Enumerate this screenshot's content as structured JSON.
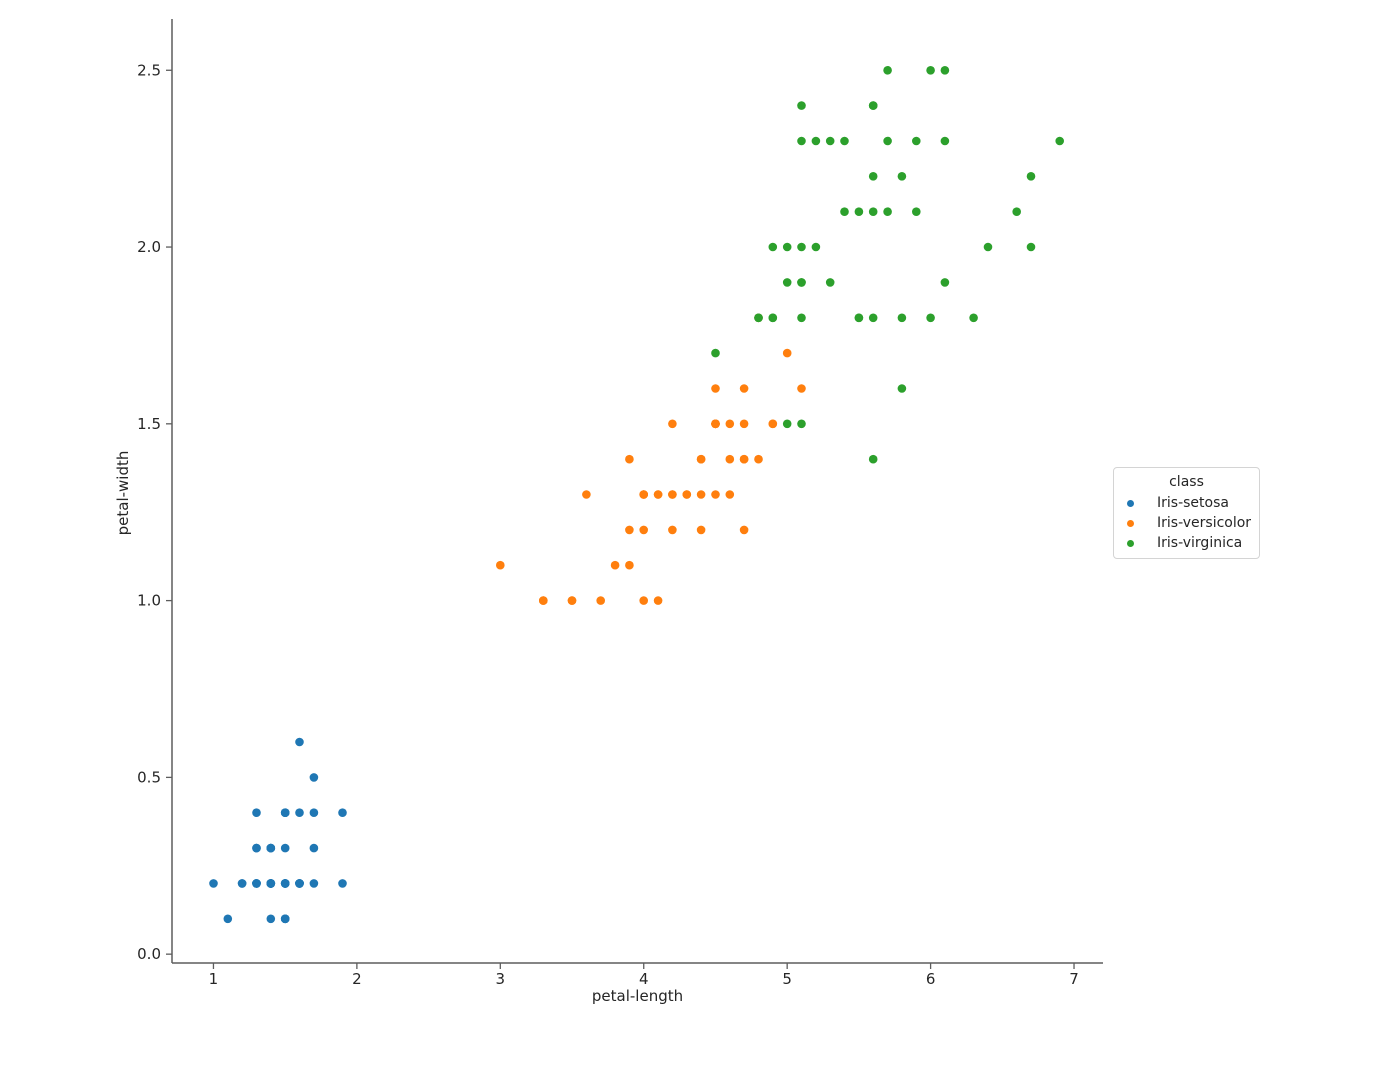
{
  "figure": {
    "background": "#ffffff"
  },
  "style": {
    "text_color": "#262626",
    "spine_color": "#5d5d5d",
    "tick_color": "#5d5d5d",
    "legend_border_color": "#d4d4d4",
    "marker_radius": 4.3
  },
  "chart_data": {
    "type": "scatter",
    "title": "",
    "xlabel": "petal-length",
    "ylabel": "petal-width",
    "xlim": [
      0.711,
      7.202
    ],
    "ylim": [
      -0.025,
      2.645
    ],
    "grid": false,
    "x_ticks": {
      "values": [
        1,
        2,
        3,
        4,
        5,
        6,
        7
      ],
      "labels": [
        "1",
        "2",
        "3",
        "4",
        "5",
        "6",
        "7"
      ]
    },
    "y_ticks": {
      "values": [
        0.0,
        0.5,
        1.0,
        1.5,
        2.0,
        2.5
      ],
      "labels": [
        "0.0",
        "0.5",
        "1.0",
        "1.5",
        "2.0",
        "2.5"
      ]
    },
    "legend": {
      "title": "class",
      "position": "center right, outside axes"
    },
    "series": [
      {
        "name": "Iris-setosa",
        "color": "#1f77b4",
        "points": [
          [
            1.4,
            0.2
          ],
          [
            1.4,
            0.2
          ],
          [
            1.3,
            0.2
          ],
          [
            1.5,
            0.2
          ],
          [
            1.4,
            0.2
          ],
          [
            1.7,
            0.4
          ],
          [
            1.4,
            0.3
          ],
          [
            1.5,
            0.2
          ],
          [
            1.4,
            0.2
          ],
          [
            1.5,
            0.1
          ],
          [
            1.5,
            0.2
          ],
          [
            1.6,
            0.2
          ],
          [
            1.4,
            0.1
          ],
          [
            1.1,
            0.1
          ],
          [
            1.2,
            0.2
          ],
          [
            1.5,
            0.4
          ],
          [
            1.3,
            0.4
          ],
          [
            1.4,
            0.3
          ],
          [
            1.7,
            0.3
          ],
          [
            1.5,
            0.3
          ],
          [
            1.7,
            0.2
          ],
          [
            1.5,
            0.4
          ],
          [
            1.0,
            0.2
          ],
          [
            1.7,
            0.5
          ],
          [
            1.9,
            0.2
          ],
          [
            1.6,
            0.2
          ],
          [
            1.6,
            0.4
          ],
          [
            1.5,
            0.2
          ],
          [
            1.4,
            0.2
          ],
          [
            1.6,
            0.2
          ],
          [
            1.6,
            0.2
          ],
          [
            1.5,
            0.4
          ],
          [
            1.5,
            0.1
          ],
          [
            1.4,
            0.2
          ],
          [
            1.5,
            0.1
          ],
          [
            1.2,
            0.2
          ],
          [
            1.3,
            0.2
          ],
          [
            1.5,
            0.1
          ],
          [
            1.3,
            0.2
          ],
          [
            1.5,
            0.2
          ],
          [
            1.3,
            0.3
          ],
          [
            1.3,
            0.3
          ],
          [
            1.3,
            0.2
          ],
          [
            1.6,
            0.6
          ],
          [
            1.9,
            0.4
          ],
          [
            1.4,
            0.3
          ],
          [
            1.6,
            0.2
          ],
          [
            1.4,
            0.2
          ],
          [
            1.5,
            0.2
          ],
          [
            1.4,
            0.2
          ]
        ]
      },
      {
        "name": "Iris-versicolor",
        "color": "#ff7f0e",
        "points": [
          [
            4.7,
            1.4
          ],
          [
            4.5,
            1.5
          ],
          [
            4.9,
            1.5
          ],
          [
            4.0,
            1.3
          ],
          [
            4.6,
            1.5
          ],
          [
            4.5,
            1.3
          ],
          [
            4.7,
            1.6
          ],
          [
            3.3,
            1.0
          ],
          [
            4.6,
            1.3
          ],
          [
            3.9,
            1.4
          ],
          [
            3.5,
            1.0
          ],
          [
            4.2,
            1.5
          ],
          [
            4.0,
            1.0
          ],
          [
            4.7,
            1.4
          ],
          [
            3.6,
            1.3
          ],
          [
            4.4,
            1.4
          ],
          [
            4.5,
            1.5
          ],
          [
            4.1,
            1.0
          ],
          [
            4.5,
            1.5
          ],
          [
            3.9,
            1.1
          ],
          [
            4.8,
            1.8
          ],
          [
            4.0,
            1.3
          ],
          [
            4.9,
            1.5
          ],
          [
            4.7,
            1.2
          ],
          [
            4.3,
            1.3
          ],
          [
            4.4,
            1.4
          ],
          [
            4.8,
            1.4
          ],
          [
            5.0,
            1.7
          ],
          [
            4.5,
            1.5
          ],
          [
            3.5,
            1.0
          ],
          [
            3.8,
            1.1
          ],
          [
            3.7,
            1.0
          ],
          [
            3.9,
            1.2
          ],
          [
            5.1,
            1.6
          ],
          [
            4.5,
            1.5
          ],
          [
            4.5,
            1.6
          ],
          [
            4.7,
            1.5
          ],
          [
            4.4,
            1.3
          ],
          [
            4.1,
            1.3
          ],
          [
            4.0,
            1.3
          ],
          [
            4.4,
            1.2
          ],
          [
            4.6,
            1.4
          ],
          [
            4.0,
            1.2
          ],
          [
            3.3,
            1.0
          ],
          [
            4.2,
            1.3
          ],
          [
            4.2,
            1.2
          ],
          [
            4.2,
            1.3
          ],
          [
            4.3,
            1.3
          ],
          [
            3.0,
            1.1
          ],
          [
            4.1,
            1.3
          ]
        ]
      },
      {
        "name": "Iris-virginica",
        "color": "#2ca02c",
        "points": [
          [
            6.0,
            2.5
          ],
          [
            5.1,
            1.9
          ],
          [
            5.9,
            2.1
          ],
          [
            5.6,
            1.8
          ],
          [
            5.8,
            2.2
          ],
          [
            6.6,
            2.1
          ],
          [
            4.5,
            1.7
          ],
          [
            6.3,
            1.8
          ],
          [
            5.8,
            1.8
          ],
          [
            6.1,
            2.5
          ],
          [
            5.1,
            2.0
          ],
          [
            5.3,
            1.9
          ],
          [
            5.5,
            2.1
          ],
          [
            5.0,
            2.0
          ],
          [
            5.1,
            2.4
          ],
          [
            5.3,
            2.3
          ],
          [
            5.5,
            1.8
          ],
          [
            6.7,
            2.2
          ],
          [
            6.9,
            2.3
          ],
          [
            5.0,
            1.5
          ],
          [
            5.7,
            2.3
          ],
          [
            4.9,
            2.0
          ],
          [
            6.7,
            2.0
          ],
          [
            4.9,
            1.8
          ],
          [
            5.7,
            2.1
          ],
          [
            6.0,
            1.8
          ],
          [
            4.8,
            1.8
          ],
          [
            4.9,
            1.8
          ],
          [
            5.6,
            2.1
          ],
          [
            5.8,
            1.6
          ],
          [
            6.1,
            1.9
          ],
          [
            6.4,
            2.0
          ],
          [
            5.6,
            2.2
          ],
          [
            5.1,
            1.5
          ],
          [
            5.6,
            1.4
          ],
          [
            6.1,
            2.3
          ],
          [
            5.6,
            2.4
          ],
          [
            5.5,
            1.8
          ],
          [
            4.8,
            1.8
          ],
          [
            5.4,
            2.1
          ],
          [
            5.6,
            2.4
          ],
          [
            5.1,
            2.3
          ],
          [
            5.1,
            1.9
          ],
          [
            5.9,
            2.3
          ],
          [
            5.7,
            2.5
          ],
          [
            5.2,
            2.3
          ],
          [
            5.0,
            1.9
          ],
          [
            5.2,
            2.0
          ],
          [
            5.4,
            2.3
          ],
          [
            5.1,
            1.8
          ]
        ]
      }
    ]
  }
}
